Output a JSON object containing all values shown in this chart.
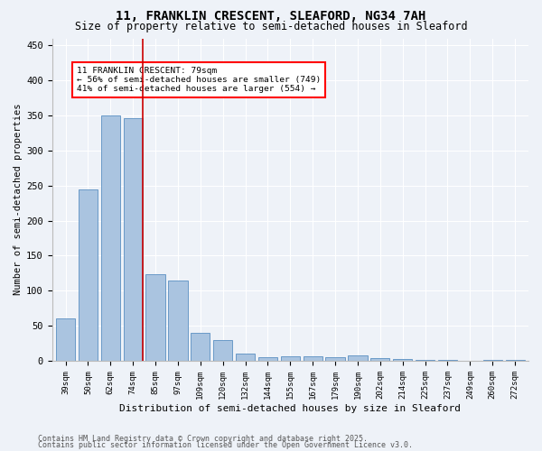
{
  "title1": "11, FRANKLIN CRESCENT, SLEAFORD, NG34 7AH",
  "title2": "Size of property relative to semi-detached houses in Sleaford",
  "xlabel": "Distribution of semi-detached houses by size in Sleaford",
  "ylabel": "Number of semi-detached properties",
  "footnote1": "Contains HM Land Registry data © Crown copyright and database right 2025.",
  "footnote2": "Contains public sector information licensed under the Open Government Licence v3.0.",
  "bar_labels": [
    "39sqm",
    "50sqm",
    "62sqm",
    "74sqm",
    "85sqm",
    "97sqm",
    "109sqm",
    "120sqm",
    "132sqm",
    "144sqm",
    "155sqm",
    "167sqm",
    "179sqm",
    "190sqm",
    "202sqm",
    "214sqm",
    "225sqm",
    "237sqm",
    "249sqm",
    "260sqm",
    "272sqm"
  ],
  "bar_values": [
    61,
    245,
    350,
    346,
    123,
    115,
    40,
    30,
    10,
    5,
    7,
    7,
    5,
    8,
    4,
    2,
    1,
    1,
    0,
    1,
    1
  ],
  "bar_color": "#aac4e0",
  "bar_edge_color": "#5a8fc2",
  "vline_x": 3.43,
  "annotation_title": "11 FRANKLIN CRESCENT: 79sqm",
  "annotation_line1": "← 56% of semi-detached houses are smaller (749)",
  "annotation_line2": "41% of semi-detached houses are larger (554) →",
  "vline_color": "#cc0000",
  "ylim": [
    0,
    460
  ],
  "yticks": [
    0,
    50,
    100,
    150,
    200,
    250,
    300,
    350,
    400,
    450
  ],
  "bg_color": "#eef2f8",
  "grid_color": "#ffffff",
  "title_fontsize": 10,
  "subtitle_fontsize": 8.5
}
